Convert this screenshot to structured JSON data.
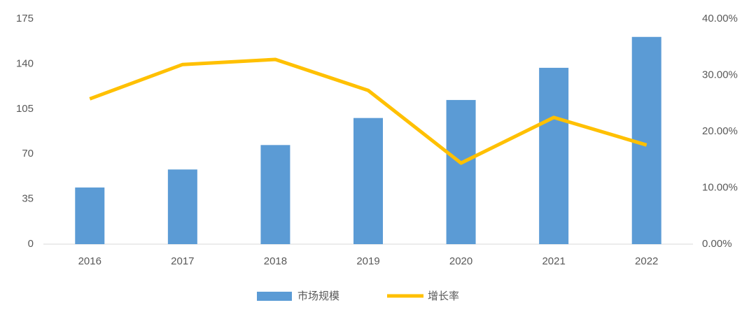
{
  "chart_data": {
    "type": "bar",
    "categories": [
      "2016",
      "2017",
      "2018",
      "2019",
      "2020",
      "2021",
      "2022"
    ],
    "series": [
      {
        "name": "市场规模",
        "type": "bar",
        "color": "#5b9bd5",
        "values": [
          44,
          58,
          77,
          98,
          112,
          137,
          161
        ]
      },
      {
        "name": "增长率",
        "type": "line",
        "axis": "y2",
        "color": "#ffc000",
        "values": [
          25.8,
          31.9,
          32.8,
          27.3,
          14.4,
          22.5,
          17.6
        ]
      }
    ],
    "ylim": [
      0,
      175
    ],
    "yticks": [
      0,
      35,
      70,
      105,
      140,
      175
    ],
    "y2lim": [
      0,
      40
    ],
    "y2ticks": [
      {
        "value": 0,
        "label": "0.00%"
      },
      {
        "value": 10,
        "label": "10.00%"
      },
      {
        "value": 20,
        "label": "20.00%"
      },
      {
        "value": 30,
        "label": "30.00%"
      },
      {
        "value": 40,
        "label": "40.00%"
      }
    ],
    "grid": false,
    "legend": "bottom"
  }
}
